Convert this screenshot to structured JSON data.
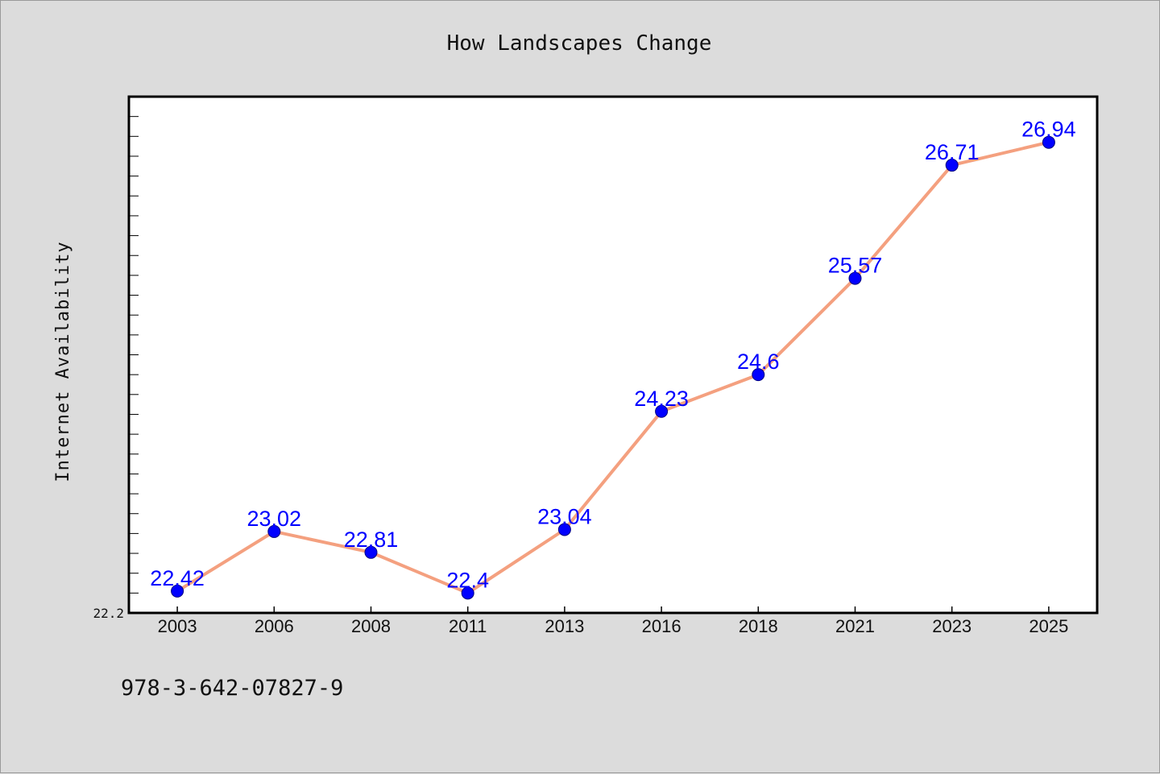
{
  "title": "How Landscapes Change",
  "footer_text": "978-3-642-07827-9",
  "colors": {
    "background": "#dcdcdc",
    "plot_background": "#ffffff",
    "line": "#f4a07f",
    "marker": "#0000ff",
    "label": "#0000ff"
  },
  "chart_data": {
    "type": "line",
    "title": "How Landscapes Change",
    "xlabel": "",
    "ylabel": "Internet Availability",
    "categories": [
      "2003",
      "2006",
      "2008",
      "2011",
      "2013",
      "2016",
      "2018",
      "2021",
      "2023",
      "2025"
    ],
    "series": [
      {
        "values": [
          22.42,
          23.02,
          22.81,
          22.4,
          23.04,
          24.23,
          24.6,
          25.57,
          26.71,
          26.94
        ]
      }
    ],
    "data_labels": [
      "22.42",
      "23.02",
      "22.81",
      "22.4",
      "23.04",
      "24.23",
      "24.6",
      "25.57",
      "26.71",
      "26.94"
    ],
    "y_tick_labels": [
      "22.2"
    ],
    "ylim": [
      22.2,
      27.4
    ],
    "y_minor_step": 0.2,
    "grid": false,
    "legend": "none"
  }
}
